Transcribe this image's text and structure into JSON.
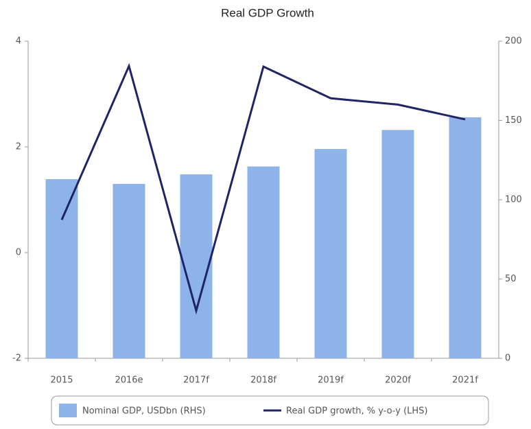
{
  "chart_data": {
    "type": "bar",
    "title": "Real GDP Growth",
    "categories": [
      "2015",
      "2016e",
      "2017f",
      "2018f",
      "2019f",
      "2020f",
      "2021f"
    ],
    "series": [
      {
        "name": "Nominal GDP, USDbn (RHS)",
        "type": "bar",
        "axis": "y2",
        "color": "#8db3e8",
        "values": [
          113,
          110,
          116,
          121,
          132,
          144,
          152
        ]
      },
      {
        "name": "Real GDP growth, % y-o-y (LHS)",
        "type": "line",
        "color": "#1f2466",
        "values": [
          0.62,
          3.53,
          -1.1,
          3.52,
          2.92,
          2.8,
          2.52
        ]
      }
    ],
    "ylim": [
      -2,
      4
    ],
    "yticks": [
      -2,
      0,
      2,
      4
    ],
    "y2lim": [
      0,
      200
    ],
    "y2ticks": [
      0,
      50,
      100,
      150,
      200
    ],
    "grid": false,
    "legend": "bottom"
  }
}
